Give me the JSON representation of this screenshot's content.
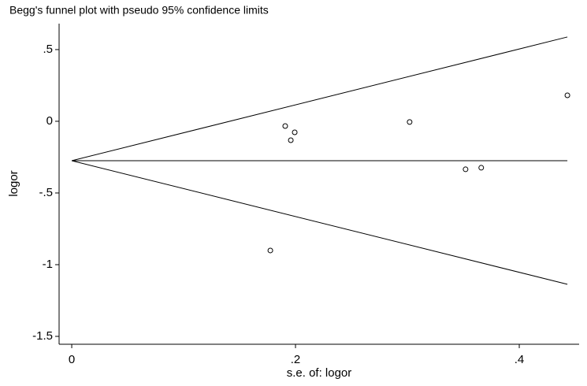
{
  "chart_data": {
    "type": "scatter",
    "title": "Begg's funnel plot with pseudo 95% confidence limits",
    "xlabel": "s.e. of: logor",
    "ylabel": "logor",
    "xlim": [
      -0.0113,
      0.4535
    ],
    "ylim": [
      -1.555,
      0.681
    ],
    "xticks": [
      0,
      {
        "value": 0.2,
        "label": ".2"
      },
      {
        "value": 0.4,
        "label": ".4"
      }
    ],
    "yticks": [
      {
        "value": 0.5,
        "label": ".5"
      },
      0,
      {
        "value": -0.5,
        "label": "-.5"
      },
      -1,
      -1.5
    ],
    "color": "#000000",
    "points": {
      "x": [
        0.1908,
        0.1993,
        0.1958,
        0.302,
        0.352,
        0.366,
        0.443,
        0.1775
      ],
      "values": [
        -0.033,
        -0.077,
        -0.132,
        -0.005,
        -0.335,
        -0.324,
        0.181,
        -0.901
      ]
    },
    "lines": [
      {
        "x": [
          0,
          0.443
        ],
        "values": [
          -0.275,
          0.588
        ]
      },
      {
        "x": [
          0,
          0.443
        ],
        "values": [
          -0.275,
          -0.275
        ]
      },
      {
        "x": [
          0,
          0.443
        ],
        "values": [
          -0.275,
          -1.137
        ]
      }
    ]
  }
}
